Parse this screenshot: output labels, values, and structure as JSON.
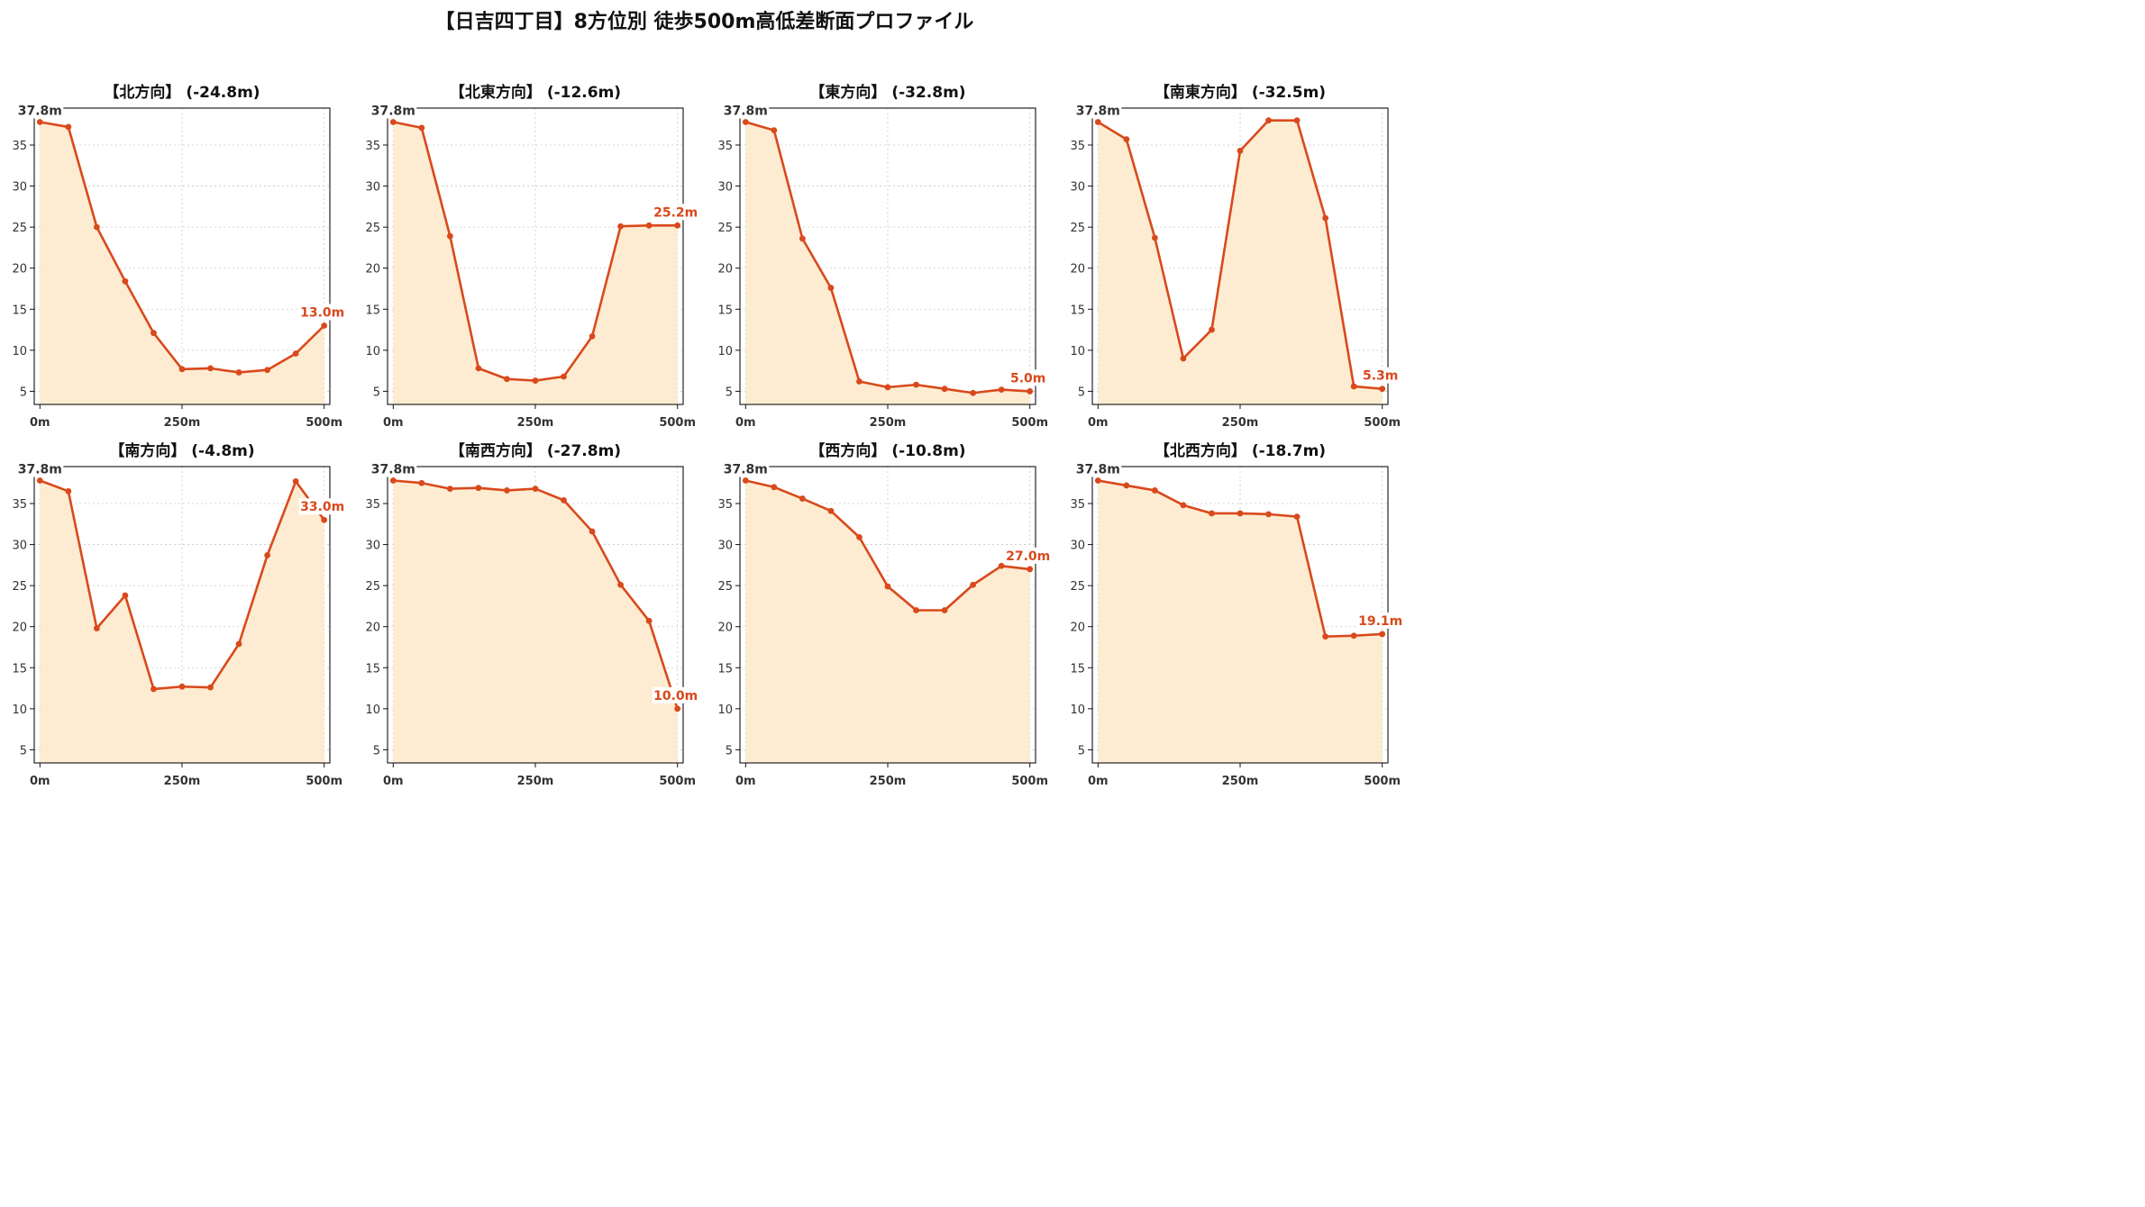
{
  "title": "【日吉四丁目】8方位別 徒歩500m高低差断面プロファイル",
  "colors": {
    "line": "#d9491c",
    "fill": "#fdecd1",
    "grid": "#c8c8c8",
    "axis": "#111111",
    "tick_text": "#333333"
  },
  "chart_data": [
    {
      "type": "area",
      "title": "【北方向】 (-24.8m)",
      "x": [
        0,
        50,
        100,
        150,
        200,
        250,
        300,
        350,
        400,
        450,
        500
      ],
      "x_ticks": [
        "0m",
        "250m",
        "500m"
      ],
      "y_ticks": [
        "5",
        "10",
        "15",
        "20",
        "25",
        "30",
        "35"
      ],
      "ylim": [
        3.4,
        39.5
      ],
      "xlim": [
        -10,
        510
      ],
      "values": [
        37.8,
        37.2,
        25.0,
        18.4,
        12.1,
        7.7,
        7.8,
        7.3,
        7.6,
        9.6,
        13.0
      ],
      "start_label": "37.8m",
      "end_label": "13.0m",
      "grid": true
    },
    {
      "type": "area",
      "title": "【北東方向】 (-12.6m)",
      "x": [
        0,
        50,
        100,
        150,
        200,
        250,
        300,
        350,
        400,
        450,
        500
      ],
      "x_ticks": [
        "0m",
        "250m",
        "500m"
      ],
      "y_ticks": [
        "5",
        "10",
        "15",
        "20",
        "25",
        "30",
        "35"
      ],
      "ylim": [
        3.4,
        39.5
      ],
      "xlim": [
        -10,
        510
      ],
      "values": [
        37.8,
        37.1,
        23.9,
        7.8,
        6.5,
        6.3,
        6.8,
        11.7,
        25.1,
        25.2,
        25.2
      ],
      "start_label": "37.8m",
      "end_label": "25.2m",
      "grid": true
    },
    {
      "type": "area",
      "title": "【東方向】 (-32.8m)",
      "x": [
        0,
        50,
        100,
        150,
        200,
        250,
        300,
        350,
        400,
        450,
        500
      ],
      "x_ticks": [
        "0m",
        "250m",
        "500m"
      ],
      "y_ticks": [
        "5",
        "10",
        "15",
        "20",
        "25",
        "30",
        "35"
      ],
      "ylim": [
        3.4,
        39.5
      ],
      "xlim": [
        -10,
        510
      ],
      "values": [
        37.8,
        36.8,
        23.6,
        17.6,
        6.2,
        5.5,
        5.8,
        5.3,
        4.8,
        5.2,
        5.0
      ],
      "start_label": "37.8m",
      "end_label": "5.0m",
      "grid": true
    },
    {
      "type": "area",
      "title": "【南東方向】 (-32.5m)",
      "x": [
        0,
        50,
        100,
        150,
        200,
        250,
        300,
        350,
        400,
        450,
        500
      ],
      "x_ticks": [
        "0m",
        "250m",
        "500m"
      ],
      "y_ticks": [
        "5",
        "10",
        "15",
        "20",
        "25",
        "30",
        "35"
      ],
      "ylim": [
        3.4,
        39.5
      ],
      "xlim": [
        -10,
        510
      ],
      "values": [
        37.8,
        35.7,
        23.7,
        9.0,
        12.5,
        34.3,
        38.0,
        38.0,
        26.1,
        5.6,
        5.3
      ],
      "start_label": "37.8m",
      "end_label": "5.3m",
      "grid": true
    },
    {
      "type": "area",
      "title": "【南方向】 (-4.8m)",
      "x": [
        0,
        50,
        100,
        150,
        200,
        250,
        300,
        350,
        400,
        450,
        500
      ],
      "x_ticks": [
        "0m",
        "250m",
        "500m"
      ],
      "y_ticks": [
        "5",
        "10",
        "15",
        "20",
        "25",
        "30",
        "35"
      ],
      "ylim": [
        3.4,
        39.5
      ],
      "xlim": [
        -10,
        510
      ],
      "values": [
        37.8,
        36.5,
        19.8,
        23.8,
        12.4,
        12.7,
        12.6,
        17.9,
        28.7,
        37.7,
        33.0
      ],
      "start_label": "37.8m",
      "end_label": "33.0m",
      "grid": true
    },
    {
      "type": "area",
      "title": "【南西方向】 (-27.8m)",
      "x": [
        0,
        50,
        100,
        150,
        200,
        250,
        300,
        350,
        400,
        450,
        500
      ],
      "x_ticks": [
        "0m",
        "250m",
        "500m"
      ],
      "y_ticks": [
        "5",
        "10",
        "15",
        "20",
        "25",
        "30",
        "35"
      ],
      "ylim": [
        3.4,
        39.5
      ],
      "xlim": [
        -10,
        510
      ],
      "values": [
        37.8,
        37.5,
        36.8,
        36.9,
        36.6,
        36.8,
        35.4,
        31.6,
        25.1,
        20.7,
        10.0
      ],
      "start_label": "37.8m",
      "end_label": "10.0m",
      "grid": true
    },
    {
      "type": "area",
      "title": "【西方向】 (-10.8m)",
      "x": [
        0,
        50,
        100,
        150,
        200,
        250,
        300,
        350,
        400,
        450,
        500
      ],
      "x_ticks": [
        "0m",
        "250m",
        "500m"
      ],
      "y_ticks": [
        "5",
        "10",
        "15",
        "20",
        "25",
        "30",
        "35"
      ],
      "ylim": [
        3.4,
        39.5
      ],
      "xlim": [
        -10,
        510
      ],
      "values": [
        37.8,
        37.0,
        35.6,
        34.1,
        30.9,
        24.9,
        22.0,
        22.0,
        25.1,
        27.4,
        27.0
      ],
      "start_label": "37.8m",
      "end_label": "27.0m",
      "grid": true
    },
    {
      "type": "area",
      "title": "【北西方向】 (-18.7m)",
      "x": [
        0,
        50,
        100,
        150,
        200,
        250,
        300,
        350,
        400,
        450,
        500
      ],
      "x_ticks": [
        "0m",
        "250m",
        "500m"
      ],
      "y_ticks": [
        "5",
        "10",
        "15",
        "20",
        "25",
        "30",
        "35"
      ],
      "ylim": [
        3.4,
        39.5
      ],
      "xlim": [
        -10,
        510
      ],
      "values": [
        37.8,
        37.2,
        36.6,
        34.8,
        33.8,
        33.8,
        33.7,
        33.4,
        18.8,
        18.9,
        19.1
      ],
      "start_label": "37.8m",
      "end_label": "19.1m",
      "grid": true
    }
  ]
}
